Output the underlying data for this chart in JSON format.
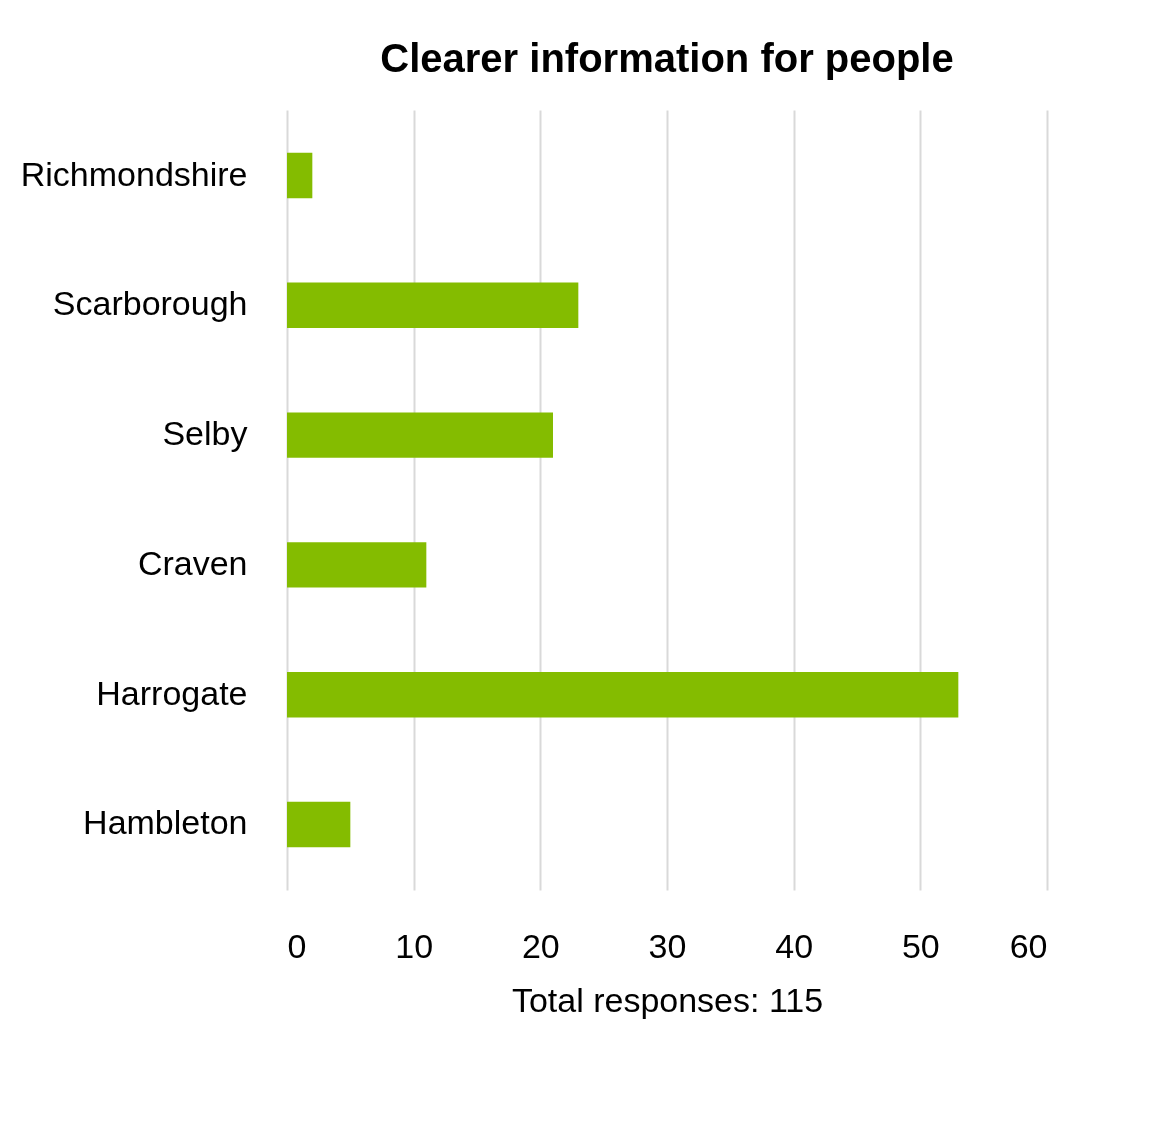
{
  "chart_data": {
    "type": "bar",
    "orientation": "horizontal",
    "title": "Clearer information for people",
    "xlabel": "Total responses: 115",
    "categories": [
      "Richmondshire",
      "Scarborough",
      "Selby",
      "Craven",
      "Harrogate",
      "Hambleton"
    ],
    "values": [
      2,
      23,
      21,
      11,
      53,
      5
    ],
    "color": "#84bc00",
    "xlim": [
      0,
      60
    ],
    "xticks": [
      0,
      10,
      20,
      30,
      40,
      50,
      60
    ],
    "grid": "x"
  }
}
